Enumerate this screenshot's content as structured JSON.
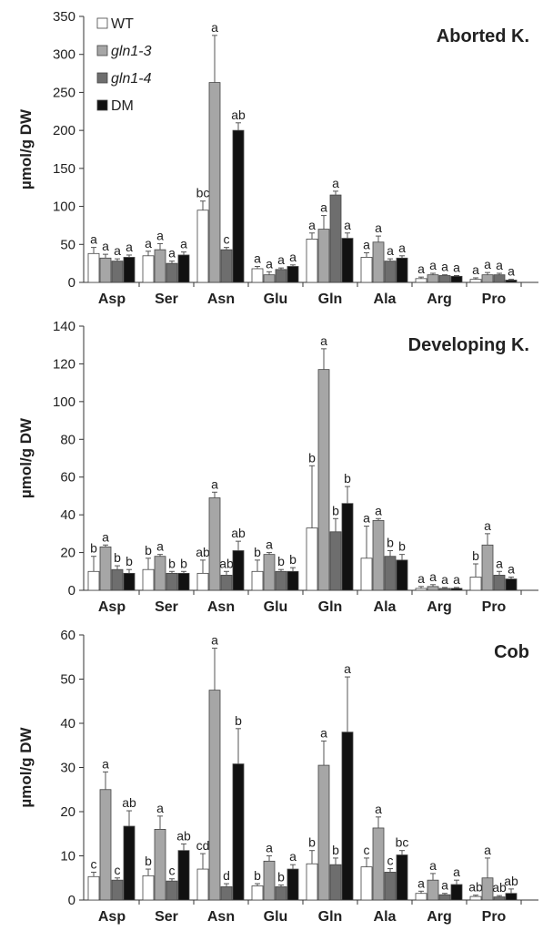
{
  "chart_data": [
    {
      "type": "bar",
      "title": "Aborted K.",
      "ylabel": "µmol/g DW",
      "ylim": [
        0,
        350
      ],
      "yticks": [
        0,
        50,
        100,
        150,
        200,
        250,
        300,
        350
      ],
      "categories": [
        "Asp",
        "Ser",
        "Asn",
        "Glu",
        "Gln",
        "Ala",
        "Arg",
        "Pro"
      ],
      "legend_position": "top-left",
      "series": [
        {
          "name": "WT",
          "color": "#ffffff",
          "values": [
            38,
            35,
            95,
            18,
            57,
            33,
            5,
            4
          ],
          "errors": [
            8,
            6,
            12,
            3,
            8,
            6,
            2,
            2
          ],
          "labels": [
            "a",
            "a",
            "bc",
            "a",
            "a",
            "a",
            "a",
            "a"
          ]
        },
        {
          "name": "gln1-3",
          "color": "#a6a6a6",
          "values": [
            32,
            43,
            263,
            10,
            70,
            53,
            10,
            10
          ],
          "errors": [
            5,
            8,
            62,
            4,
            18,
            8,
            2,
            3
          ],
          "labels": [
            "a",
            "a",
            "a",
            "a",
            "a",
            "a",
            "a",
            "a"
          ]
        },
        {
          "name": "gln1-4",
          "color": "#6e6e6e",
          "values": [
            28,
            25,
            43,
            17,
            115,
            28,
            9,
            10
          ],
          "errors": [
            3,
            3,
            3,
            2,
            5,
            3,
            1,
            2
          ],
          "labels": [
            "a",
            "a",
            "c",
            "a",
            "a",
            "a",
            "a",
            "a"
          ]
        },
        {
          "name": "DM",
          "color": "#111111",
          "values": [
            33,
            36,
            200,
            21,
            58,
            32,
            8,
            3
          ],
          "errors": [
            3,
            4,
            10,
            2,
            7,
            3,
            1,
            1
          ],
          "labels": [
            "a",
            "a",
            "ab",
            "a",
            "a",
            "a",
            "a",
            "a"
          ]
        }
      ]
    },
    {
      "type": "bar",
      "title": "Developing K.",
      "ylabel": "µmol/g DW",
      "ylim": [
        0,
        140
      ],
      "yticks": [
        0,
        20,
        40,
        60,
        80,
        100,
        120,
        140
      ],
      "categories": [
        "Asp",
        "Ser",
        "Asn",
        "Glu",
        "Gln",
        "Ala",
        "Arg",
        "Pro"
      ],
      "series": [
        {
          "name": "WT",
          "color": "#ffffff",
          "values": [
            10,
            11,
            9,
            10,
            33,
            17,
            1,
            7
          ],
          "errors": [
            8,
            6,
            7,
            6,
            33,
            17,
            1,
            7
          ],
          "labels": [
            "b",
            "b",
            "ab",
            "b",
            "b",
            "a",
            "a",
            "b"
          ]
        },
        {
          "name": "gln1-3",
          "color": "#a6a6a6",
          "values": [
            23,
            18,
            49,
            19,
            117,
            37,
            2,
            24
          ],
          "errors": [
            1,
            1,
            3,
            1,
            11,
            1,
            1,
            6
          ],
          "labels": [
            "a",
            "a",
            "a",
            "a",
            "a",
            "a",
            "a",
            "a"
          ]
        },
        {
          "name": "gln1-4",
          "color": "#6e6e6e",
          "values": [
            11,
            9,
            8,
            10,
            31,
            18,
            1,
            8
          ],
          "errors": [
            2,
            1,
            2,
            1,
            7,
            3,
            0.5,
            2
          ],
          "labels": [
            "b",
            "b",
            "ab",
            "b",
            "b",
            "b",
            "a",
            "a"
          ]
        },
        {
          "name": "DM",
          "color": "#111111",
          "values": [
            9,
            9,
            21,
            10,
            46,
            16,
            1,
            6
          ],
          "errors": [
            2,
            1,
            5,
            2,
            9,
            3,
            0.5,
            1
          ],
          "labels": [
            "b",
            "b",
            "ab",
            "b",
            "b",
            "b",
            "a",
            "a"
          ]
        }
      ]
    },
    {
      "type": "bar",
      "title": "Cob",
      "ylabel": "µmol/g DW",
      "ylim": [
        0,
        60
      ],
      "yticks": [
        0,
        10,
        20,
        30,
        40,
        50,
        60
      ],
      "categories": [
        "Asp",
        "Ser",
        "Asn",
        "Glu",
        "Gln",
        "Ala",
        "Arg",
        "Pro"
      ],
      "series": [
        {
          "name": "WT",
          "color": "#ffffff",
          "values": [
            5.3,
            5.5,
            7,
            3.2,
            8.2,
            7.5,
            1.5,
            0.8
          ],
          "errors": [
            1,
            1.5,
            3.5,
            0.5,
            3,
            2,
            0.5,
            0.3
          ],
          "labels": [
            "c",
            "b",
            "cd",
            "b",
            "b",
            "c",
            "a",
            "ab"
          ]
        },
        {
          "name": "gln1-3",
          "color": "#a6a6a6",
          "values": [
            25,
            16,
            47.5,
            8.8,
            30.5,
            16.3,
            4.5,
            5
          ],
          "errors": [
            4,
            3,
            9.5,
            1.2,
            5.5,
            2.5,
            1.5,
            4.5
          ],
          "labels": [
            "a",
            "a",
            "a",
            "a",
            "a",
            "a",
            "a",
            "a"
          ]
        },
        {
          "name": "gln1-4",
          "color": "#6e6e6e",
          "values": [
            4.5,
            4.3,
            3,
            3,
            8,
            6.3,
            1.2,
            0.7
          ],
          "errors": [
            0.5,
            0.5,
            0.7,
            0.4,
            1.5,
            0.8,
            0.3,
            0.3
          ],
          "labels": [
            "c",
            "c",
            "d",
            "b",
            "b",
            "c",
            "a",
            "ab"
          ]
        },
        {
          "name": "DM",
          "color": "#111111",
          "values": [
            16.7,
            11.2,
            30.8,
            7,
            38,
            10.2,
            3.5,
            1.5
          ],
          "errors": [
            3.5,
            1.5,
            8,
            1,
            12.5,
            1,
            1,
            1
          ],
          "labels": [
            "ab",
            "ab",
            "b",
            "a",
            "a",
            "bc",
            "a",
            "ab"
          ]
        }
      ]
    }
  ]
}
